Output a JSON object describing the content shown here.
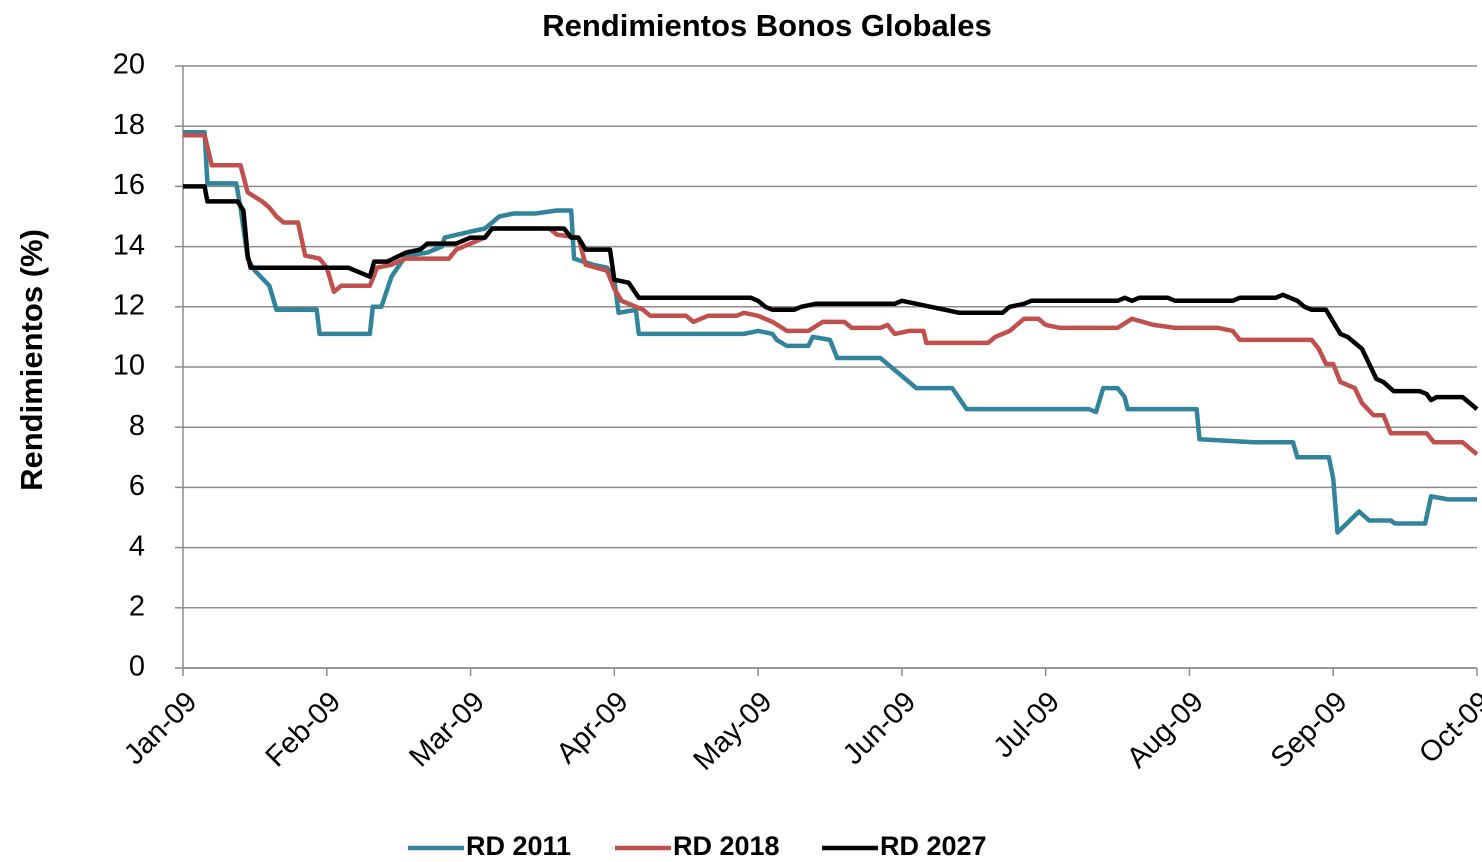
{
  "chart_data": {
    "type": "line",
    "title": "Rendimientos Bonos Globales",
    "ylabel": "Rendimientos (%)",
    "xlim": [
      0,
      9
    ],
    "xticks": [
      {
        "value": 0,
        "label": "Jan-09"
      },
      {
        "value": 1,
        "label": "Feb-09"
      },
      {
        "value": 2,
        "label": "Mar-09"
      },
      {
        "value": 3,
        "label": "Apr-09"
      },
      {
        "value": 4,
        "label": "May-09"
      },
      {
        "value": 5,
        "label": "Jun-09"
      },
      {
        "value": 6,
        "label": "Jul-09"
      },
      {
        "value": 7,
        "label": "Aug-09"
      },
      {
        "value": 8,
        "label": "Sep-09"
      },
      {
        "value": 9,
        "label": "Oct-09"
      }
    ],
    "ylim": [
      0,
      20
    ],
    "yticks": [
      0,
      2,
      4,
      6,
      8,
      10,
      12,
      14,
      16,
      18,
      20
    ],
    "grid": true,
    "legend": "bottom",
    "series": [
      {
        "name": "RD 2011",
        "color": "#31849b",
        "x": [
          0,
          0.15,
          0.17,
          0.37,
          0.4,
          0.45,
          0.5,
          0.6,
          0.65,
          0.93,
          0.95,
          1.3,
          1.32,
          1.38,
          1.45,
          1.55,
          1.7,
          1.8,
          1.82,
          2.0,
          2.1,
          2.2,
          2.3,
          2.45,
          2.6,
          2.7,
          2.72,
          2.85,
          2.95,
          3.0,
          3.03,
          3.15,
          3.17,
          3.9,
          4.0,
          4.1,
          4.13,
          4.2,
          4.35,
          4.38,
          4.5,
          4.55,
          4.85,
          5.0,
          5.1,
          5.35,
          5.45,
          6.3,
          6.35,
          6.4,
          6.5,
          6.55,
          6.57,
          7.05,
          7.07,
          7.45,
          7.72,
          7.75,
          7.97,
          8.0,
          8.03,
          8.18,
          8.25,
          8.4,
          8.43,
          8.64,
          8.68,
          8.8,
          9.0
        ],
        "values": [
          17.8,
          17.8,
          16.1,
          16.1,
          15.3,
          13.6,
          13.2,
          12.7,
          11.9,
          11.9,
          11.1,
          11.1,
          12.0,
          12.0,
          13.0,
          13.7,
          13.8,
          14.0,
          14.3,
          14.5,
          14.6,
          15.0,
          15.1,
          15.1,
          15.2,
          15.2,
          13.6,
          13.4,
          13.3,
          12.9,
          11.8,
          11.9,
          11.1,
          11.1,
          11.2,
          11.1,
          10.9,
          10.7,
          10.7,
          11.0,
          10.9,
          10.3,
          10.3,
          9.7,
          9.3,
          9.3,
          8.6,
          8.6,
          8.5,
          9.3,
          9.3,
          9.0,
          8.6,
          8.6,
          7.6,
          7.5,
          7.5,
          7.0,
          7.0,
          6.3,
          4.5,
          5.2,
          4.9,
          4.9,
          4.8,
          4.8,
          5.7,
          5.6,
          5.6
        ]
      },
      {
        "name": "RD 2018",
        "color": "#c0504d",
        "x": [
          0,
          0.15,
          0.2,
          0.4,
          0.45,
          0.55,
          0.6,
          0.65,
          0.7,
          0.8,
          0.85,
          0.95,
          1.0,
          1.05,
          1.1,
          1.3,
          1.35,
          1.45,
          1.55,
          1.85,
          1.9,
          2.0,
          2.1,
          2.15,
          2.55,
          2.6,
          2.75,
          2.8,
          2.95,
          3.0,
          3.05,
          3.2,
          3.25,
          3.5,
          3.55,
          3.65,
          3.85,
          3.9,
          4.0,
          4.1,
          4.2,
          4.35,
          4.45,
          4.6,
          4.65,
          4.85,
          4.9,
          4.95,
          5.05,
          5.15,
          5.17,
          5.6,
          5.65,
          5.75,
          5.85,
          5.95,
          6.0,
          6.1,
          6.5,
          6.6,
          6.75,
          6.9,
          7.2,
          7.3,
          7.35,
          7.85,
          7.9,
          7.95,
          8.0,
          8.05,
          8.15,
          8.2,
          8.28,
          8.35,
          8.4,
          8.65,
          8.7,
          8.9,
          9.0
        ],
        "values": [
          17.7,
          17.7,
          16.7,
          16.7,
          15.8,
          15.5,
          15.3,
          15.0,
          14.8,
          14.8,
          13.7,
          13.6,
          13.3,
          12.5,
          12.7,
          12.7,
          13.3,
          13.4,
          13.6,
          13.6,
          13.9,
          14.1,
          14.3,
          14.6,
          14.6,
          14.4,
          14.3,
          13.4,
          13.2,
          12.6,
          12.2,
          11.9,
          11.7,
          11.7,
          11.5,
          11.7,
          11.7,
          11.8,
          11.7,
          11.5,
          11.2,
          11.2,
          11.5,
          11.5,
          11.3,
          11.3,
          11.4,
          11.1,
          11.2,
          11.2,
          10.8,
          10.8,
          11.0,
          11.2,
          11.6,
          11.6,
          11.4,
          11.3,
          11.3,
          11.6,
          11.4,
          11.3,
          11.3,
          11.2,
          10.9,
          10.9,
          10.6,
          10.1,
          10.1,
          9.5,
          9.3,
          8.8,
          8.4,
          8.4,
          7.8,
          7.8,
          7.5,
          7.5,
          7.1
        ]
      },
      {
        "name": "RD 2027",
        "color": "#000000",
        "x": [
          0,
          0.15,
          0.17,
          0.38,
          0.42,
          0.45,
          0.47,
          1.15,
          1.25,
          1.3,
          1.33,
          1.42,
          1.55,
          1.65,
          1.7,
          1.9,
          2.0,
          2.1,
          2.15,
          2.65,
          2.7,
          2.75,
          2.8,
          2.97,
          3.0,
          3.1,
          3.17,
          3.95,
          4.0,
          4.05,
          4.1,
          4.25,
          4.3,
          4.4,
          4.95,
          5.0,
          5.1,
          5.2,
          5.3,
          5.4,
          5.7,
          5.75,
          5.85,
          5.9,
          6.5,
          6.55,
          6.6,
          6.65,
          6.85,
          6.9,
          7.3,
          7.35,
          7.6,
          7.65,
          7.75,
          7.8,
          7.85,
          7.95,
          8.0,
          8.05,
          8.1,
          8.2,
          8.3,
          8.35,
          8.42,
          8.6,
          8.65,
          8.68,
          8.72,
          8.9,
          8.95,
          9.0
        ],
        "values": [
          16.0,
          16.0,
          15.5,
          15.5,
          15.2,
          13.7,
          13.3,
          13.3,
          13.1,
          13.0,
          13.5,
          13.5,
          13.8,
          13.9,
          14.1,
          14.1,
          14.3,
          14.3,
          14.6,
          14.6,
          14.3,
          14.3,
          13.9,
          13.9,
          12.9,
          12.8,
          12.3,
          12.3,
          12.2,
          12.0,
          11.9,
          11.9,
          12.0,
          12.1,
          12.1,
          12.2,
          12.1,
          12.0,
          11.9,
          11.8,
          11.8,
          12.0,
          12.1,
          12.2,
          12.2,
          12.3,
          12.2,
          12.3,
          12.3,
          12.2,
          12.2,
          12.3,
          12.3,
          12.4,
          12.2,
          12.0,
          11.9,
          11.9,
          11.5,
          11.1,
          11.0,
          10.6,
          9.6,
          9.5,
          9.2,
          9.2,
          9.1,
          8.9,
          9.0,
          9.0,
          8.8,
          8.6
        ]
      }
    ]
  }
}
